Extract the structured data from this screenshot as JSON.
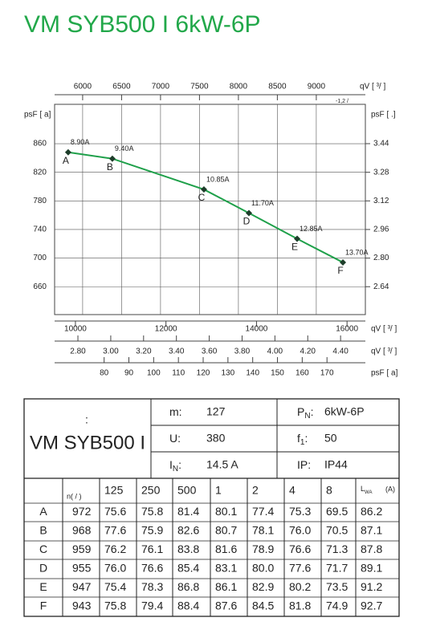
{
  "header": {
    "title": "VM SYB500 I 6kW-6P"
  },
  "chart_data": {
    "type": "line",
    "y_label": "psF [  a]",
    "y2_label": "psF [   .]",
    "x_label": "qV [ ³/ ]",
    "x2_label": "qV [ ³/    ]",
    "x2_note": "-1,2 /",
    "x3_label": "qV [ ³/ ]",
    "x4_label": "psF [ a]",
    "xlim": [
      9540,
      16405
    ],
    "xticks": [
      10000,
      12000,
      14000,
      16000
    ],
    "x2lim": [
      5640,
      9630
    ],
    "x2ticks": [
      6000,
      6500,
      7000,
      7500,
      8000,
      8500,
      9000
    ],
    "x3lim": [
      2.658,
      4.551
    ],
    "x3ticks": [
      {
        "value": 2.8,
        "label": "2.80"
      },
      {
        "value": 3.0,
        "label": "3.00"
      },
      {
        "value": 3.2,
        "label": "3.20"
      },
      {
        "value": 3.4,
        "label": "3.40"
      },
      {
        "value": 3.6,
        "label": "3.60"
      },
      {
        "value": 3.8,
        "label": "3.80"
      },
      {
        "value": 4.0,
        "label": "4.00"
      },
      {
        "value": 4.2,
        "label": "4.20"
      },
      {
        "value": 4.4,
        "label": "4.40"
      }
    ],
    "x4lim": [
      60,
      185.5
    ],
    "x4ticks": [
      80,
      90,
      100,
      110,
      120,
      130,
      140,
      150,
      160,
      170
    ],
    "ylim": [
      621,
      915
    ],
    "yticks": [
      660,
      700,
      740,
      780,
      820,
      860
    ],
    "y2lim": [
      2.484,
      3.66
    ],
    "y2ticks": [
      2.64,
      {
        "value": 2.8,
        "label": "2.80"
      },
      2.96,
      3.12,
      3.28,
      3.44
    ],
    "grid": true,
    "color": "#1fa04a",
    "x": [
      9840,
      10816,
      12839,
      13833,
      14898,
      15909
    ],
    "values": [
      848,
      839,
      796,
      763,
      727,
      694
    ],
    "point_labels": [
      "A",
      "B",
      "C",
      "D",
      "E",
      "F"
    ],
    "current_labels": [
      "8.90A",
      "9.40A",
      "10.85A",
      "11.70A",
      "12.85A",
      "13.70A"
    ]
  },
  "spec": {
    "note": ":",
    "model": "VM SYB500 I",
    "rows": [
      [
        {
          "label": "m:"
        },
        "127",
        {
          "label": "P",
          "sub": "N",
          "colon": ":"
        },
        "6kW-6P"
      ],
      [
        {
          "label": "U:"
        },
        "380",
        {
          "label": "f",
          "sub": "1",
          "colon": ":"
        },
        "50"
      ],
      [
        {
          "label": "I",
          "sub": "N",
          "colon": ":"
        },
        "14.5  A",
        {
          "label": "IP:"
        },
        "IP44"
      ]
    ]
  },
  "table": {
    "header": [
      "n(  /  )",
      "125",
      "250",
      "500",
      "1",
      "2",
      "4",
      "8"
    ],
    "lwa": {
      "label": "L",
      "sub": "WA",
      "unit": "(A)"
    },
    "rows": [
      [
        "A",
        "972",
        "75.6",
        "75.8",
        "81.4",
        "80.1",
        "77.4",
        "75.3",
        "69.5",
        "86.2"
      ],
      [
        "B",
        "968",
        "77.6",
        "75.9",
        "82.6",
        "80.7",
        "78.1",
        "76.0",
        "70.5",
        "87.1"
      ],
      [
        "C",
        "959",
        "76.2",
        "76.1",
        "83.8",
        "81.6",
        "78.9",
        "76.6",
        "71.3",
        "87.8"
      ],
      [
        "D",
        "955",
        "76.0",
        "76.6",
        "85.4",
        "83.1",
        "80.0",
        "77.6",
        "71.7",
        "89.1"
      ],
      [
        "E",
        "947",
        "75.4",
        "78.3",
        "86.8",
        "86.1",
        "82.9",
        "80.2",
        "73.5",
        "91.2"
      ],
      [
        "F",
        "943",
        "75.8",
        "79.4",
        "88.4",
        "87.6",
        "84.5",
        "81.8",
        "74.9",
        "92.7"
      ]
    ]
  }
}
